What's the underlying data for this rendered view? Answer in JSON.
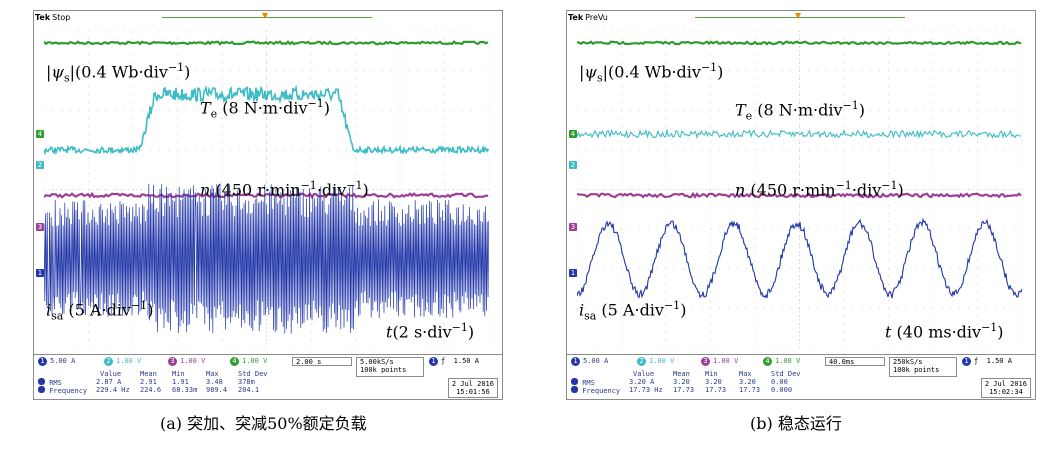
{
  "colors": {
    "ch1": "#2236a8",
    "ch2": "#3cbcc4",
    "ch3": "#9c3f96",
    "ch4": "#2f9c2f"
  },
  "panels": [
    {
      "id": "a",
      "header": {
        "brand": "Tek",
        "status": "Stop"
      },
      "labels": {
        "psi": {
          "pre": "|",
          "sym": "ψ",
          "sub": "s",
          "post": "|(0.4 Wb·div",
          "sup": "−1",
          "end": ")"
        },
        "te": {
          "sym": "T",
          "sub": "e",
          "post": " (8 N·m·div",
          "sup": "−1",
          "end": ")"
        },
        "n": {
          "sym": "n",
          "post": " (450 r·min",
          "sup1": "−1",
          "mid": "·div",
          "sup2": "−1",
          "end": ")"
        },
        "isa": {
          "sym": "i",
          "sub": "sa",
          "post": " (5 A·div",
          "sup": "−1",
          "end": ")"
        },
        "t": {
          "sym": "t",
          "post": "(2 s·div",
          "sup": "−1",
          "end": ")"
        }
      },
      "channel_markers": [
        "4",
        "2",
        "3",
        "1"
      ],
      "footer": {
        "ch1": "5.00 A",
        "ch2": "1.00 V",
        "ch3": "1.00 V",
        "ch4": "1.00 V",
        "timebase": "2.00 s",
        "rate": "5.00kS/s",
        "points": "100k points",
        "trig_ch": "1",
        "trig_level": "1.50 A",
        "headers": [
          "Value",
          "Mean",
          "Min",
          "Max",
          "Std Dev"
        ],
        "rms": [
          "RMS",
          "2.87 A",
          "2.91",
          "1.91",
          "3.48",
          "378m"
        ],
        "freq": [
          "Frequency",
          "229.4 Hz",
          "224.6",
          "68.33m",
          "989.4",
          "204.1"
        ],
        "date": "2 Jul  2016",
        "time": "15:01:56"
      },
      "caption": "(a) 突加、突减50%额定负载"
    },
    {
      "id": "b",
      "header": {
        "brand": "Tek",
        "status": "PreVu"
      },
      "labels": {
        "psi": {
          "pre": "|",
          "sym": "ψ",
          "sub": "s",
          "post": "|(0.4 Wb·div",
          "sup": "−1",
          "end": ")"
        },
        "te": {
          "sym": "T",
          "sub": "e",
          "post": " (8 N·m·div",
          "sup": "−1",
          "end": ")"
        },
        "n": {
          "sym": "n",
          "post": " (450 r·min",
          "sup1": "−1",
          "mid": "·div",
          "sup2": "−1",
          "end": ")"
        },
        "isa": {
          "sym": "i",
          "sub": "sa",
          "post": " (5 A·div",
          "sup": "−1",
          "end": ")"
        },
        "t": {
          "sym": "t",
          "post": " (40 ms·div",
          "sup": "−1",
          "end": ")"
        }
      },
      "channel_markers": [
        "4",
        "2",
        "3",
        "1"
      ],
      "footer": {
        "ch1": "5.00 A",
        "ch2": "1.00 V",
        "ch3": "1.00 V",
        "ch4": "1.00 V",
        "timebase": "40.0ms",
        "rate": "250kS/s",
        "points": "100k points",
        "trig_ch": "1",
        "trig_level": "1.50 A",
        "headers": [
          "Value",
          "Mean",
          "Min",
          "Max",
          "Std Dev"
        ],
        "rms": [
          "RMS",
          "3.20 A",
          "3.20",
          "3.20",
          "3.20",
          "0.00"
        ],
        "freq": [
          "Frequency",
          "17.73 Hz",
          "17.73",
          "17.73",
          "17.73",
          "0.000"
        ],
        "date": "2 Jul  2016",
        "time": "15:02:34"
      },
      "caption": "(b) 稳态运行"
    }
  ],
  "chart_data": [
    {
      "type": "line",
      "panel": "a",
      "x_unit": "s",
      "x_per_div": 2,
      "x_divisions": 10,
      "series": [
        {
          "name": "|ψs|",
          "channel": 4,
          "per_div": "0.4 Wb",
          "shape": "constant",
          "level_div": 3.7
        },
        {
          "name": "Te",
          "channel": 2,
          "per_div": "8 N·m",
          "shape": "load step: low, rise at 4.3 s to plateau, fall at 13.2 s to low",
          "low_div": 1.0,
          "high_div": 2.4,
          "step_up_s": 4.3,
          "step_down_s": 13.2
        },
        {
          "name": "n",
          "channel": 3,
          "per_div": "450 r·min^-1",
          "shape": "constant",
          "level_div": -0.15
        },
        {
          "name": "isa",
          "channel": 1,
          "per_div": "5 A",
          "shape": "dense AC envelope",
          "amplitude_div": 1.5,
          "amplitude_div_loaded": 1.9
        }
      ]
    },
    {
      "type": "line",
      "panel": "b",
      "x_unit": "ms",
      "x_per_div": 40,
      "x_divisions": 10,
      "series": [
        {
          "name": "|ψs|",
          "channel": 4,
          "per_div": "0.4 Wb",
          "shape": "constant",
          "level_div": 3.7
        },
        {
          "name": "Te",
          "channel": 2,
          "per_div": "8 N·m",
          "shape": "constant with noise",
          "level_div": 1.4
        },
        {
          "name": "n",
          "channel": 3,
          "per_div": "450 r·min^-1",
          "shape": "constant",
          "level_div": -0.15
        },
        {
          "name": "isa",
          "channel": 1,
          "per_div": "5 A",
          "shape": "sinusoid",
          "frequency_hz": 17.73,
          "amplitude_div": 0.9,
          "center_div": -1.75
        }
      ]
    }
  ]
}
